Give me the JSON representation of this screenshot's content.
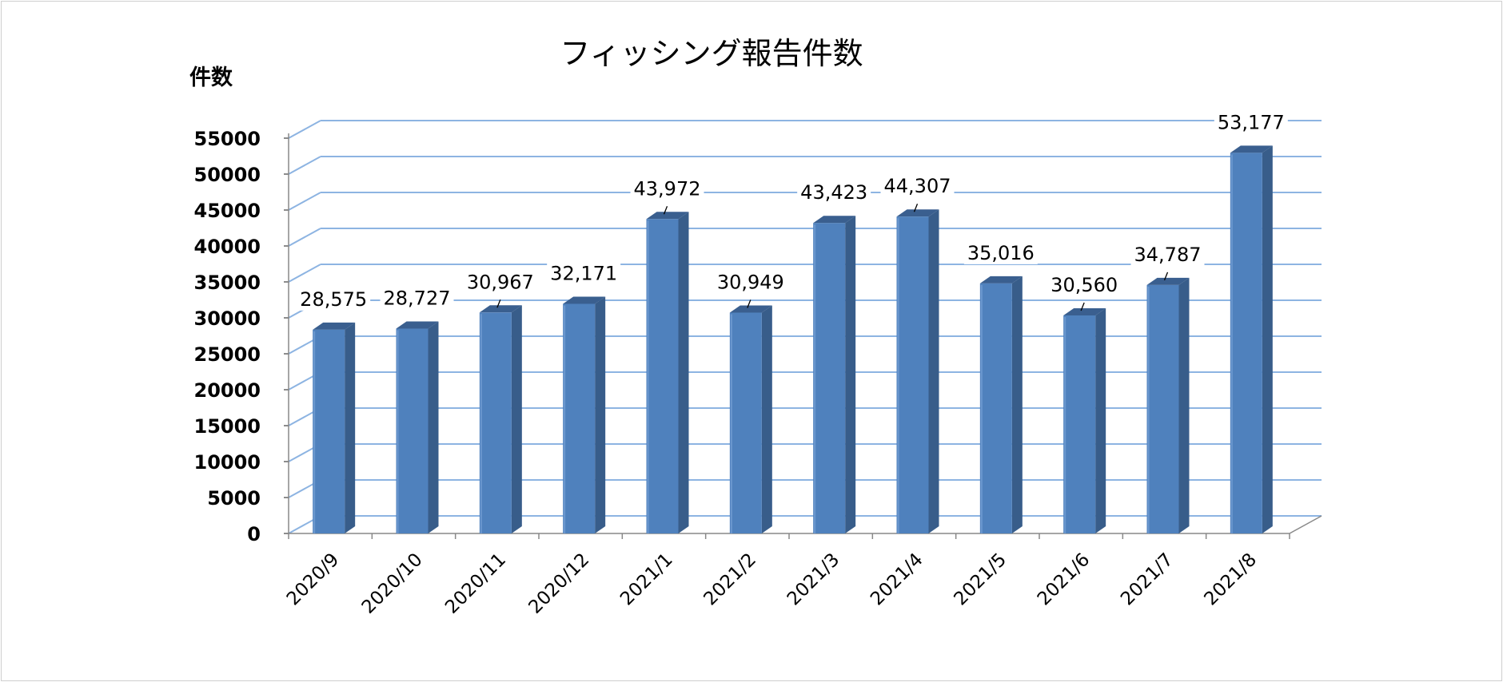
{
  "chart_data": {
    "type": "bar",
    "title": "フィッシング報告件数",
    "ylabel": "件数",
    "xlabel": "",
    "categories": [
      "2020/9",
      "2020/10",
      "2020/11",
      "2020/12",
      "2021/1",
      "2021/2",
      "2021/3",
      "2021/4",
      "2021/5",
      "2021/6",
      "2021/7",
      "2021/8"
    ],
    "values": [
      28575,
      28727,
      30967,
      32171,
      43972,
      30949,
      43423,
      44307,
      35016,
      30560,
      34787,
      53177
    ],
    "data_labels": [
      "28,575",
      "28,727",
      "30,967",
      "32,171",
      "43,972",
      "30,949",
      "43,423",
      "44,307",
      "35,016",
      "30,560",
      "34,787",
      "53,177"
    ],
    "yticks": [
      0,
      5000,
      10000,
      15000,
      20000,
      25000,
      30000,
      35000,
      40000,
      45000,
      50000,
      55000
    ],
    "ylim": [
      0,
      55000
    ],
    "grid": true,
    "style": "3d-column",
    "colors": {
      "bar_front": "#4f81bd",
      "bar_side": "#385d8a",
      "bar_top": "#3a5f8f",
      "gridline": "#8db4e2"
    }
  }
}
